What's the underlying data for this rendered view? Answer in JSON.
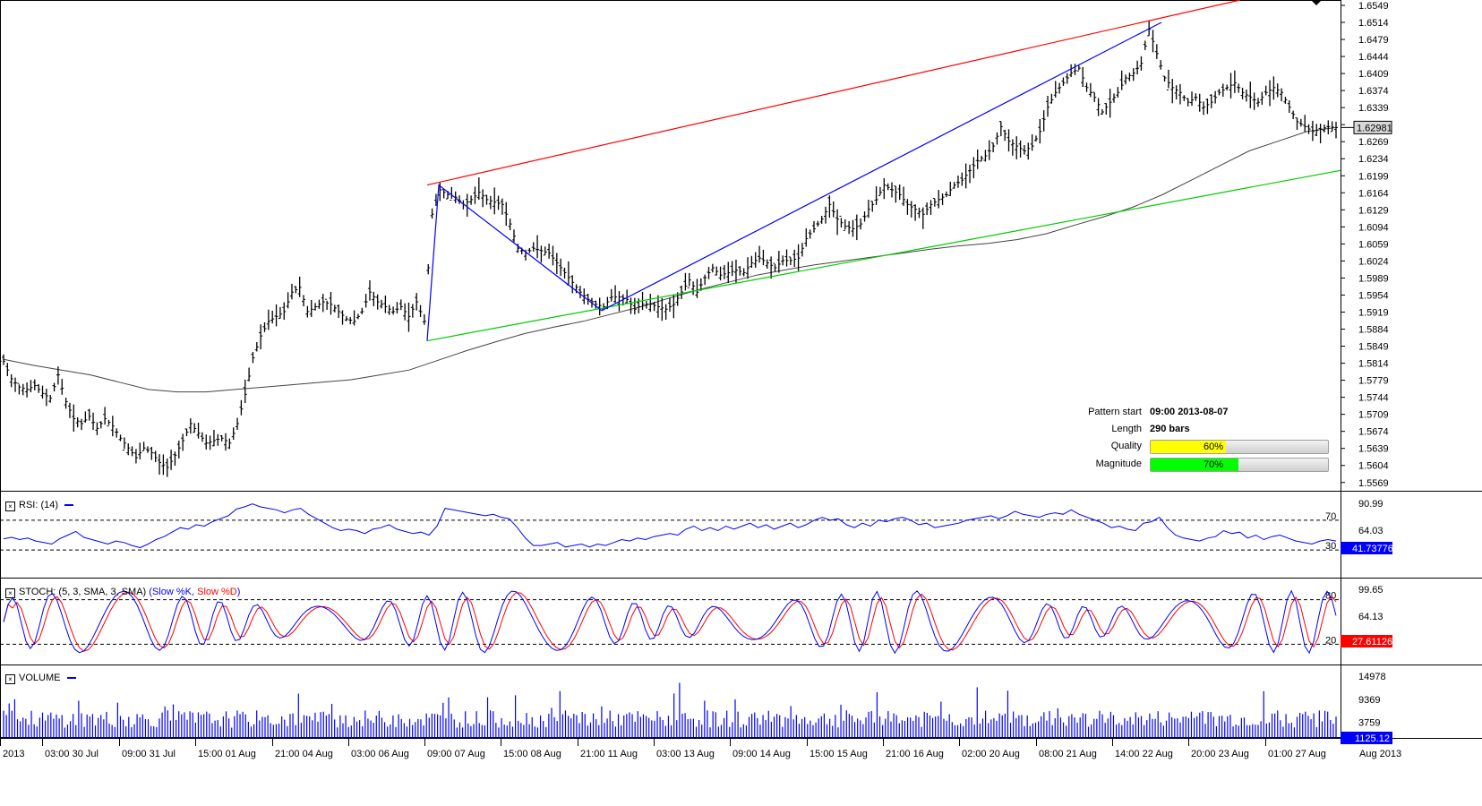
{
  "chart_data": {
    "type": "candlestick",
    "price": {
      "ticks": [
        "1.6549",
        "1.6514",
        "1.6479",
        "1.6444",
        "1.6409",
        "1.6374",
        "1.6339",
        "1.6304",
        "1.6269",
        "1.6234",
        "1.6199",
        "1.6164",
        "1.6129",
        "1.6094",
        "1.6059",
        "1.6024",
        "1.5989",
        "1.5954",
        "1.5919",
        "1.5884",
        "1.5849",
        "1.5814",
        "1.5779",
        "1.5744",
        "1.5709",
        "1.5674",
        "1.5639",
        "1.5604",
        "1.5569"
      ],
      "ylim": [
        1.5552,
        1.656
      ],
      "current": "1.62981",
      "bars": 290,
      "moving_average": "sma",
      "close_series": [
        1.5818,
        1.5782,
        1.5765,
        1.576,
        1.5768,
        1.5752,
        1.5742,
        1.579,
        1.5735,
        1.57,
        1.569,
        1.5705,
        1.568,
        1.57,
        1.5685,
        1.566,
        1.564,
        1.562,
        1.564,
        1.563,
        1.561,
        1.56,
        1.5625,
        1.5655,
        1.569,
        1.567,
        1.565,
        1.5655,
        1.566,
        1.565,
        1.569,
        1.575,
        1.5825,
        1.587,
        1.59,
        1.591,
        1.592,
        1.596,
        1.597,
        1.592,
        1.593,
        1.594,
        1.5935,
        1.592,
        1.5905,
        1.59,
        1.592,
        1.596,
        1.594,
        1.593,
        1.592,
        1.593,
        1.591,
        1.594,
        1.59,
        1.612,
        1.617,
        1.616,
        1.6155,
        1.614,
        1.615,
        1.6165,
        1.615,
        1.6145,
        1.614,
        1.61,
        1.605,
        1.604,
        1.605,
        1.6045,
        1.604,
        1.602,
        1.6,
        1.598,
        1.596,
        1.5945,
        1.5935,
        1.593,
        1.595,
        1.595,
        1.5945,
        1.5925,
        1.5935,
        1.5935,
        1.593,
        1.5925,
        1.5935,
        1.596,
        1.5985,
        1.596,
        1.599,
        1.601,
        1.5995,
        1.6,
        1.6005,
        1.6,
        1.602,
        1.603,
        1.602,
        1.601,
        1.6025,
        1.6025,
        1.603,
        1.607,
        1.609,
        1.611,
        1.614,
        1.611,
        1.6095,
        1.609,
        1.61,
        1.613,
        1.615,
        1.618,
        1.617,
        1.616,
        1.614,
        1.613,
        1.612,
        1.614,
        1.615,
        1.616,
        1.618,
        1.619,
        1.621,
        1.623,
        1.624,
        1.626,
        1.63,
        1.627,
        1.626,
        1.625,
        1.626,
        1.629,
        1.634,
        1.637,
        1.639,
        1.641,
        1.642,
        1.638,
        1.636,
        1.633,
        1.635,
        1.637,
        1.64,
        1.641,
        1.643,
        1.65,
        1.645,
        1.64,
        1.638,
        1.637,
        1.635,
        1.636,
        1.634,
        1.635,
        1.637,
        1.638,
        1.639,
        1.637,
        1.636,
        1.635,
        1.637,
        1.638,
        1.637,
        1.634,
        1.631,
        1.63,
        1.629,
        1.6295,
        1.63,
        1.6298
      ],
      "ma_series": [
        1.5822,
        1.581,
        1.58,
        1.579,
        1.5775,
        1.576,
        1.5755,
        1.5755,
        1.576,
        1.5765,
        1.577,
        1.5775,
        1.578,
        1.579,
        1.58,
        1.582,
        1.584,
        1.5858,
        1.5875,
        1.5888,
        1.59,
        1.5915,
        1.593,
        1.5948,
        1.5965,
        1.598,
        1.5995,
        1.6006,
        1.6016,
        1.6024,
        1.6032,
        1.604,
        1.6048,
        1.6055,
        1.606,
        1.6068,
        1.608,
        1.6098,
        1.6115,
        1.6135,
        1.616,
        1.619,
        1.622,
        1.625,
        1.627,
        1.629,
        1.6298
      ]
    },
    "pattern_lines": [
      {
        "name": "resistance",
        "color": "#ff0000",
        "points": [
          [
            "09:00 07 Aug",
            1.618
          ],
          [
            "end",
            1.656
          ]
        ]
      },
      {
        "name": "support",
        "color": "#00cc00",
        "points": [
          [
            "09:00 07 Aug",
            1.586
          ],
          [
            "end",
            1.621
          ]
        ]
      },
      {
        "name": "wave",
        "color": "#0000ff",
        "points": [
          [
            1.586
          ],
          [
            1.618
          ],
          [
            1.5922
          ],
          [
            1.6514
          ]
        ]
      }
    ],
    "x_ticks": [
      "2013",
      "03:00 30 Jul",
      "09:00 31 Jul",
      "15:00 01 Aug",
      "21:00 04 Aug",
      "03:00 06 Aug",
      "09:00 07 Aug",
      "15:00 08 Aug",
      "21:00 11 Aug",
      "03:00 13 Aug",
      "09:00 14 Aug",
      "15:00 15 Aug",
      "21:00 16 Aug",
      "02:00 20 Aug",
      "08:00 21 Aug",
      "14:00 22 Aug",
      "20:00 23 Aug",
      "01:00 27 Aug"
    ],
    "x_last": "Aug 2013",
    "rsi": {
      "label": "RSI: (14)",
      "ticks": [
        "90.99",
        "64.03"
      ],
      "levels": [
        "70",
        "30"
      ],
      "current": "41.73776",
      "ylim": [
        0,
        100
      ],
      "level_values": [
        70,
        30
      ],
      "series": [
        45,
        47,
        44,
        46,
        42,
        40,
        38,
        45,
        50,
        55,
        47,
        44,
        41,
        38,
        42,
        40,
        36,
        33,
        38,
        44,
        48,
        54,
        60,
        58,
        64,
        62,
        68,
        72,
        76,
        85,
        88,
        92,
        88,
        86,
        84,
        80,
        84,
        86,
        78,
        72,
        66,
        60,
        56,
        58,
        56,
        52,
        58,
        60,
        64,
        58,
        55,
        52,
        54,
        50,
        62,
        86,
        84,
        82,
        80,
        78,
        76,
        78,
        74,
        72,
        60,
        46,
        36,
        36,
        38,
        40,
        34,
        36,
        38,
        34,
        38,
        36,
        40,
        44,
        42,
        46,
        44,
        48,
        50,
        52,
        50,
        58,
        62,
        56,
        60,
        56,
        62,
        58,
        62,
        66,
        60,
        64,
        58,
        62,
        66,
        60,
        64,
        70,
        74,
        70,
        72,
        64,
        60,
        66,
        62,
        70,
        68,
        72,
        74,
        70,
        64,
        66,
        60,
        62,
        64,
        66,
        70,
        72,
        74,
        76,
        72,
        76,
        82,
        78,
        76,
        74,
        78,
        80,
        78,
        84,
        78,
        74,
        70,
        66,
        60,
        62,
        58,
        56,
        66,
        68,
        74,
        60,
        50,
        46,
        44,
        42,
        46,
        48,
        56,
        52,
        54,
        46,
        50,
        44,
        48,
        50,
        46,
        42,
        40,
        38,
        42,
        44,
        42
      ]
    },
    "stoch": {
      "label": "STOCH: (5, 3, SMA, 3, SMA)",
      "series_k": "Slow %K",
      "series_d": "Slow %D",
      "ticks": [
        "99.65",
        "64.13"
      ],
      "levels": [
        "80",
        "20"
      ],
      "current_d": "27.61126",
      "ylim": [
        0,
        100
      ],
      "level_values": [
        80,
        20
      ]
    },
    "volume": {
      "label": "VOLUME",
      "ticks": [
        "14978",
        "9369",
        "3759"
      ],
      "current": "1125.12",
      "ylim": [
        0,
        16500
      ]
    }
  },
  "pattern_info": {
    "start_label": "Pattern start",
    "start_value": "09:00 2013-08-07",
    "length_label": "Length",
    "length_value": "290 bars",
    "quality_label": "Quality",
    "quality_value": "60%",
    "quality_fraction": 0.6,
    "quality_color": "#ffff00",
    "magnitude_label": "Magnitude",
    "magnitude_value": "70%",
    "magnitude_fraction": 0.7,
    "magnitude_color": "#00ff00"
  },
  "colors": {
    "candle": "#000000",
    "ma": "#444444",
    "rsi": "#0000ff",
    "stoch_k": "#0000ff",
    "stoch_d": "#ff0000",
    "volume": "#0000ff",
    "highlight": "#d8d8d8"
  }
}
